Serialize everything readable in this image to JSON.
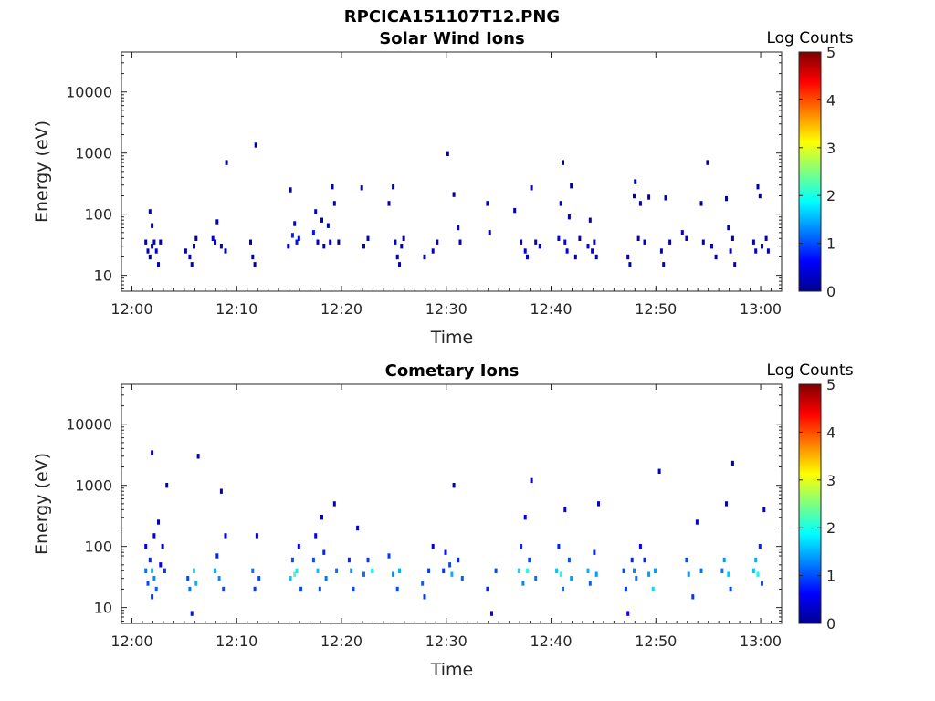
{
  "figure": {
    "title": "RPCICA151107T12.PNG"
  },
  "panels": [
    {
      "title": "Solar Wind Ions",
      "xlabel": "Time",
      "ylabel": "Energy (eV)",
      "colorbar_label": "Log Counts",
      "colorbar_ticks": [
        "0",
        "1",
        "2",
        "3",
        "4",
        "5"
      ],
      "x_ticks": [
        "12:00",
        "12:10",
        "12:20",
        "12:30",
        "12:40",
        "12:50",
        "13:00"
      ],
      "y_ticks": [
        "10",
        "100",
        "1000",
        "10000"
      ]
    },
    {
      "title": "Cometary Ions",
      "xlabel": "Time",
      "ylabel": "Energy (eV)",
      "colorbar_label": "Log Counts",
      "colorbar_ticks": [
        "0",
        "1",
        "2",
        "3",
        "4",
        "5"
      ],
      "x_ticks": [
        "12:00",
        "12:10",
        "12:20",
        "12:30",
        "12:40",
        "12:50",
        "13:00"
      ],
      "y_ticks": [
        "10",
        "100",
        "1000",
        "10000"
      ]
    }
  ],
  "chart_data": [
    {
      "type": "heatmap",
      "title": "Solar Wind Ions",
      "xlabel": "Time",
      "ylabel": "Energy (eV)",
      "x_units": "minutes after 12:00",
      "xlim": [
        "11:59",
        "13:02"
      ],
      "ylim": [
        5.5,
        45000
      ],
      "yscale": "log",
      "colorbar": {
        "label": "Log Counts",
        "range": [
          0,
          5
        ],
        "colormap": "jet"
      },
      "grid": false,
      "cells": [
        [
          1.2,
          35,
          0.2
        ],
        [
          1.4,
          25,
          0.3
        ],
        [
          1.6,
          20,
          0.2
        ],
        [
          1.6,
          110,
          0.3
        ],
        [
          1.8,
          30,
          0.4
        ],
        [
          1.8,
          65,
          0.3
        ],
        [
          2,
          35,
          0.3
        ],
        [
          2.2,
          25,
          0.4
        ],
        [
          2.4,
          15,
          0.3
        ],
        [
          2.6,
          35,
          0.2
        ],
        [
          5,
          25,
          0.3
        ],
        [
          5.4,
          20,
          0.4
        ],
        [
          5.6,
          15,
          0.3
        ],
        [
          5.8,
          30,
          0.3
        ],
        [
          6,
          40,
          0.2
        ],
        [
          7.6,
          40,
          0.5
        ],
        [
          7.8,
          35,
          0.4
        ],
        [
          8,
          75,
          0.3
        ],
        [
          8.4,
          30,
          0.3
        ],
        [
          8.8,
          25,
          0.3
        ],
        [
          8.9,
          700,
          0.2
        ],
        [
          11.2,
          35,
          0.3
        ],
        [
          11.4,
          20,
          0.3
        ],
        [
          11.6,
          15,
          0.2
        ],
        [
          11.7,
          1350,
          0.2
        ],
        [
          14.8,
          30,
          0.5
        ],
        [
          15,
          250,
          0.2
        ],
        [
          15.2,
          45,
          0.8
        ],
        [
          15.4,
          70,
          0.5
        ],
        [
          15.6,
          35,
          0.7
        ],
        [
          15.8,
          40,
          0.5
        ],
        [
          17.2,
          50,
          0.7
        ],
        [
          17.4,
          110,
          0.4
        ],
        [
          17.6,
          35,
          0.4
        ],
        [
          18,
          80,
          0.3
        ],
        [
          18.2,
          30,
          0.3
        ],
        [
          18.6,
          65,
          0.3
        ],
        [
          18.8,
          35,
          0.3
        ],
        [
          19,
          280,
          0.2
        ],
        [
          19.2,
          150,
          0.3
        ],
        [
          19.6,
          35,
          0.2
        ],
        [
          21.8,
          270,
          0.2
        ],
        [
          22,
          30,
          0.3
        ],
        [
          22.4,
          40,
          0.4
        ],
        [
          24.4,
          150,
          0.2
        ],
        [
          24.8,
          280,
          0.2
        ],
        [
          25,
          35,
          0.4
        ],
        [
          25.2,
          20,
          0.3
        ],
        [
          25.4,
          15,
          0.3
        ],
        [
          25.6,
          30,
          0.3
        ],
        [
          25.8,
          40,
          0.2
        ],
        [
          27.8,
          20,
          0.3
        ],
        [
          28.6,
          25,
          0.4
        ],
        [
          29,
          35,
          0.3
        ],
        [
          30,
          980,
          0.2
        ],
        [
          30.6,
          210,
          0.2
        ],
        [
          31,
          60,
          0.3
        ],
        [
          31.2,
          35,
          0.3
        ],
        [
          33.8,
          150,
          0.2
        ],
        [
          34,
          50,
          0.3
        ],
        [
          36.4,
          115,
          0.2
        ],
        [
          37,
          35,
          0.4
        ],
        [
          37.4,
          25,
          0.5
        ],
        [
          37.6,
          20,
          0.5
        ],
        [
          38,
          270,
          0.3
        ],
        [
          38.4,
          35,
          0.4
        ],
        [
          38.8,
          30,
          0.3
        ],
        [
          40.6,
          40,
          0.6
        ],
        [
          40.8,
          150,
          0.3
        ],
        [
          41,
          700,
          0.2
        ],
        [
          41.2,
          35,
          0.6
        ],
        [
          41.4,
          25,
          0.5
        ],
        [
          41.6,
          90,
          0.3
        ],
        [
          41.8,
          290,
          0.2
        ],
        [
          42.2,
          20,
          0.3
        ],
        [
          42.6,
          40,
          0.3
        ],
        [
          43.4,
          30,
          0.6
        ],
        [
          43.6,
          80,
          0.3
        ],
        [
          43.8,
          25,
          0.5
        ],
        [
          44,
          35,
          0.4
        ],
        [
          44.2,
          20,
          0.3
        ],
        [
          47.2,
          20,
          0.3
        ],
        [
          47.4,
          15,
          0.3
        ],
        [
          47.8,
          200,
          0.2
        ],
        [
          47.9,
          340,
          0.2
        ],
        [
          48.2,
          40,
          0.3
        ],
        [
          48.4,
          150,
          0.2
        ],
        [
          48.8,
          35,
          0.3
        ],
        [
          49.2,
          190,
          0.2
        ],
        [
          50.4,
          25,
          0.4
        ],
        [
          50.6,
          15,
          0.3
        ],
        [
          50.8,
          185,
          0.2
        ],
        [
          51.2,
          35,
          0.3
        ],
        [
          52.4,
          50,
          0.3
        ],
        [
          52.8,
          40,
          0.3
        ],
        [
          54.2,
          150,
          0.2
        ],
        [
          54.4,
          35,
          0.3
        ],
        [
          54.8,
          700,
          0.2
        ],
        [
          55.2,
          30,
          0.3
        ],
        [
          55.6,
          20,
          0.3
        ],
        [
          56.6,
          180,
          0.2
        ],
        [
          56.8,
          60,
          0.3
        ],
        [
          57,
          25,
          0.3
        ],
        [
          57.2,
          40,
          0.3
        ],
        [
          57.4,
          15,
          0.3
        ],
        [
          59.2,
          35,
          0.4
        ],
        [
          59.4,
          25,
          0.4
        ],
        [
          59.6,
          280,
          0.2
        ],
        [
          59.8,
          200,
          0.2
        ],
        [
          60,
          30,
          0.3
        ],
        [
          60.4,
          40,
          0.3
        ],
        [
          60.6,
          25,
          0.3
        ]
      ]
    },
    {
      "type": "heatmap",
      "title": "Cometary Ions",
      "xlabel": "Time",
      "ylabel": "Energy (eV)",
      "x_units": "minutes after 12:00",
      "xlim": [
        "11:59",
        "13:02"
      ],
      "ylim": [
        5.5,
        45000
      ],
      "yscale": "log",
      "colorbar": {
        "label": "Log Counts",
        "range": [
          0,
          5
        ],
        "colormap": "jet"
      },
      "grid": false,
      "cells": [
        [
          1.2,
          100,
          0.5
        ],
        [
          1.2,
          40,
          1.2
        ],
        [
          1.4,
          25,
          1
        ],
        [
          1.6,
          60,
          0.8
        ],
        [
          1.8,
          40,
          1.6
        ],
        [
          1.8,
          15,
          0.9
        ],
        [
          1.8,
          3400,
          0.4
        ],
        [
          2,
          150,
          0.4
        ],
        [
          2,
          30,
          1.3
        ],
        [
          2.2,
          20,
          1.1
        ],
        [
          2.4,
          250,
          0.3
        ],
        [
          2.6,
          50,
          0.6
        ],
        [
          2.8,
          100,
          0.4
        ],
        [
          3,
          40,
          0.9
        ],
        [
          3.2,
          1000,
          0.3
        ],
        [
          5.2,
          30,
          1
        ],
        [
          5.4,
          20,
          1.2
        ],
        [
          5.6,
          8,
          0.7
        ],
        [
          5.8,
          40,
          1.8
        ],
        [
          6,
          25,
          1.5
        ],
        [
          6.2,
          3000,
          0.3
        ],
        [
          7.8,
          40,
          1.5
        ],
        [
          8,
          70,
          0.8
        ],
        [
          8.2,
          30,
          1.3
        ],
        [
          8.4,
          800,
          0.3
        ],
        [
          8.6,
          20,
          1
        ],
        [
          8.8,
          150,
          0.4
        ],
        [
          11.4,
          40,
          1.2
        ],
        [
          11.6,
          20,
          0.9
        ],
        [
          11.8,
          150,
          0.4
        ],
        [
          12,
          30,
          1
        ],
        [
          15,
          30,
          1.6
        ],
        [
          15.2,
          60,
          1
        ],
        [
          15.4,
          35,
          2.2
        ],
        [
          15.6,
          40,
          1.8
        ],
        [
          15.8,
          100,
          0.6
        ],
        [
          16,
          20,
          1
        ],
        [
          17.2,
          60,
          1
        ],
        [
          17.4,
          150,
          0.6
        ],
        [
          17.6,
          40,
          1.6
        ],
        [
          17.8,
          20,
          1
        ],
        [
          18,
          300,
          0.5
        ],
        [
          18.2,
          80,
          0.8
        ],
        [
          18.4,
          30,
          1.2
        ],
        [
          19.2,
          500,
          0.4
        ],
        [
          19.4,
          40,
          1.2
        ],
        [
          20.6,
          60,
          0.8
        ],
        [
          20.8,
          40,
          1.4
        ],
        [
          21,
          20,
          1
        ],
        [
          21.4,
          200,
          0.4
        ],
        [
          22,
          35,
          1.2
        ],
        [
          22.4,
          60,
          0.9
        ],
        [
          22.8,
          40,
          1.9
        ],
        [
          24.4,
          70,
          0.9
        ],
        [
          24.8,
          35,
          1.3
        ],
        [
          25.2,
          20,
          1
        ],
        [
          25.4,
          40,
          1.5
        ],
        [
          27.6,
          25,
          1.1
        ],
        [
          27.8,
          15,
          0.9
        ],
        [
          28.2,
          40,
          0.9
        ],
        [
          28.6,
          100,
          0.5
        ],
        [
          29.6,
          40,
          0.9
        ],
        [
          29.8,
          80,
          0.7
        ],
        [
          30.2,
          50,
          1
        ],
        [
          30.4,
          35,
          1.5
        ],
        [
          30.6,
          1000,
          0.3
        ],
        [
          31,
          60,
          0.8
        ],
        [
          31.4,
          30,
          1.1
        ],
        [
          33.8,
          20,
          0.8
        ],
        [
          34.2,
          8,
          0.6
        ],
        [
          34.6,
          40,
          1
        ],
        [
          36.8,
          40,
          1.7
        ],
        [
          37,
          100,
          0.8
        ],
        [
          37.2,
          25,
          1.3
        ],
        [
          37.4,
          300,
          0.5
        ],
        [
          37.6,
          40,
          2
        ],
        [
          37.8,
          60,
          1
        ],
        [
          38,
          1200,
          0.3
        ],
        [
          38.4,
          30,
          1.2
        ],
        [
          40.4,
          40,
          1.6
        ],
        [
          40.6,
          100,
          0.8
        ],
        [
          40.8,
          35,
          2
        ],
        [
          41,
          20,
          1.2
        ],
        [
          41.2,
          400,
          0.5
        ],
        [
          41.6,
          60,
          1
        ],
        [
          41.8,
          30,
          1.4
        ],
        [
          43.4,
          40,
          1.5
        ],
        [
          43.6,
          25,
          1.1
        ],
        [
          44,
          80,
          0.8
        ],
        [
          44.2,
          35,
          1.4
        ],
        [
          44.4,
          500,
          0.4
        ],
        [
          46.8,
          40,
          1
        ],
        [
          47,
          20,
          0.9
        ],
        [
          47.2,
          8,
          0.6
        ],
        [
          47.6,
          60,
          0.8
        ],
        [
          47.8,
          40,
          1.3
        ],
        [
          48,
          30,
          1.2
        ],
        [
          48.4,
          100,
          0.6
        ],
        [
          48.8,
          60,
          0.8
        ],
        [
          49.2,
          35,
          1.4
        ],
        [
          49.6,
          20,
          1.7
        ],
        [
          49.8,
          40,
          1.4
        ],
        [
          50.2,
          1700,
          0.3
        ],
        [
          52.8,
          60,
          1
        ],
        [
          53,
          35,
          1.4
        ],
        [
          53.4,
          15,
          0.9
        ],
        [
          53.8,
          250,
          0.5
        ],
        [
          54.2,
          40,
          1.2
        ],
        [
          56.2,
          40,
          1.2
        ],
        [
          56.4,
          60,
          1.4
        ],
        [
          56.6,
          500,
          0.4
        ],
        [
          56.8,
          35,
          1.6
        ],
        [
          57,
          20,
          1
        ],
        [
          57.2,
          2300,
          0.3
        ],
        [
          59.2,
          40,
          1.6
        ],
        [
          59.4,
          60,
          1.5
        ],
        [
          59.6,
          35,
          1.9
        ],
        [
          59.8,
          100,
          0.8
        ],
        [
          60,
          25,
          1
        ],
        [
          60.2,
          400,
          0.4
        ]
      ]
    }
  ]
}
